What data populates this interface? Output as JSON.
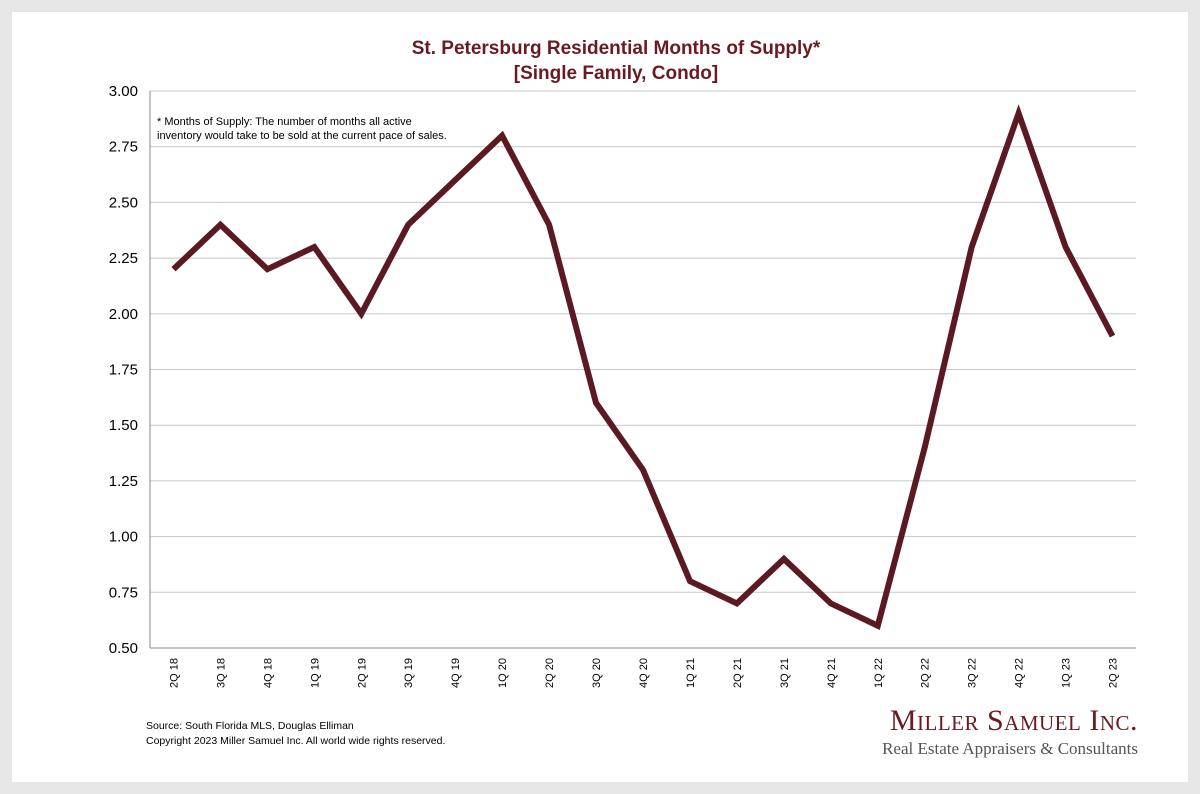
{
  "colors": {
    "line": "#5b1a22",
    "title": "#6b1a22",
    "grid": "#c8c8c8",
    "axis": "#888888"
  },
  "chart_data": {
    "type": "line",
    "title": "St. Petersburg Residential Months of Supply*",
    "subtitle": "[Single Family, Condo]",
    "categories": [
      "2Q 18",
      "3Q 18",
      "4Q 18",
      "1Q 19",
      "2Q 19",
      "3Q 19",
      "4Q 19",
      "1Q 20",
      "2Q 20",
      "3Q 20",
      "4Q 20",
      "1Q 21",
      "2Q 21",
      "3Q 21",
      "4Q 21",
      "1Q 22",
      "2Q 22",
      "3Q 22",
      "4Q 22",
      "1Q 23",
      "2Q 23"
    ],
    "values": [
      2.2,
      2.4,
      2.2,
      2.3,
      2.0,
      2.4,
      2.6,
      2.8,
      2.4,
      1.6,
      1.3,
      0.8,
      0.7,
      0.9,
      0.7,
      0.6,
      1.4,
      2.3,
      2.9,
      2.3,
      1.9
    ],
    "ylim": [
      0.5,
      3.0
    ],
    "yticks": [
      0.5,
      0.75,
      1.0,
      1.25,
      1.5,
      1.75,
      2.0,
      2.25,
      2.5,
      2.75,
      3.0
    ],
    "ytick_labels": [
      "0.50",
      "0.75",
      "1.00",
      "1.25",
      "1.50",
      "1.75",
      "2.00",
      "2.25",
      "2.50",
      "2.75",
      "3.00"
    ],
    "grid": true,
    "note_line1": "* Months of Supply: The number of months all active",
    "note_line2": "inventory would take to be sold at the current pace of sales."
  },
  "footer": {
    "source": "Source: South Florida MLS, Douglas Elliman",
    "copyright": "Copyright 2023 Miller Samuel Inc.  All world wide rights reserved."
  },
  "logo": {
    "name": "Miller Samuel Inc.",
    "tagline": "Real Estate Appraisers & Consultants"
  }
}
